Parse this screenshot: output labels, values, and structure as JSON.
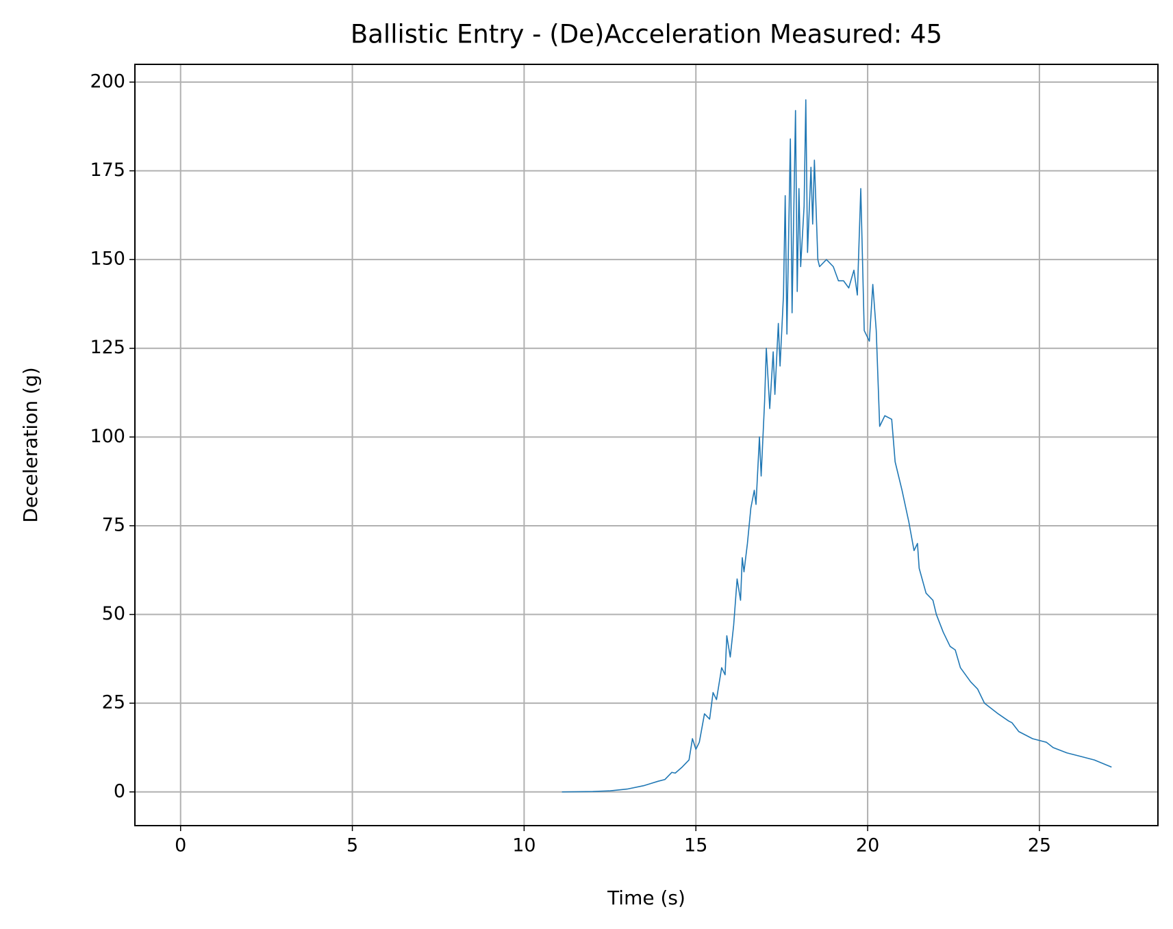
{
  "chart_data": {
    "type": "line",
    "title": "Ballistic Entry - (De)Acceleration Measured: 45",
    "x_label": "Time (s)",
    "y_label": "Deceleration (g)",
    "xlim": [
      -1.33,
      28.45
    ],
    "ylim": [
      -9.5,
      205
    ],
    "xticks": [
      0,
      5,
      10,
      15,
      20,
      25
    ],
    "yticks": [
      0,
      25,
      50,
      75,
      100,
      125,
      150,
      175,
      200
    ],
    "grid": true,
    "series": [
      {
        "color": "#1f77b4",
        "x": [
          11.1,
          12,
          12.5,
          13,
          13.5,
          13.9,
          14.1,
          14.3,
          14.4,
          14.6,
          14.8,
          14.9,
          15.0,
          15.1,
          15.25,
          15.4,
          15.5,
          15.6,
          15.75,
          15.85,
          15.9,
          16.0,
          16.1,
          16.2,
          16.3,
          16.35,
          16.4,
          16.5,
          16.6,
          16.7,
          16.75,
          16.85,
          16.9,
          17.0,
          17.05,
          17.15,
          17.25,
          17.3,
          17.4,
          17.45,
          17.55,
          17.6,
          17.65,
          17.75,
          17.8,
          17.9,
          17.95,
          18.0,
          18.05,
          18.15,
          18.2,
          18.25,
          18.35,
          18.4,
          18.45,
          18.55,
          18.6,
          18.8,
          19.0,
          19.15,
          19.3,
          19.45,
          19.6,
          19.7,
          19.8,
          19.9,
          20.0,
          20.05,
          20.15,
          20.25,
          20.35,
          20.5,
          20.7,
          20.8,
          21.0,
          21.2,
          21.35,
          21.45,
          21.5,
          21.7,
          21.9,
          22.0,
          22.2,
          22.4,
          22.55,
          22.7,
          23.0,
          23.2,
          23.4,
          23.8,
          24.1,
          24.2,
          24.4,
          24.8,
          25.2,
          25.4,
          25.8,
          26.2,
          26.6,
          27.1
        ],
        "values": [
          0,
          0.1,
          0.3,
          0.8,
          1.8,
          3,
          3.5,
          5.5,
          5.3,
          7,
          9,
          15,
          12,
          14,
          22,
          20.5,
          28,
          26,
          35,
          33,
          44,
          38,
          47,
          60,
          54,
          66,
          62,
          70,
          80,
          85,
          81,
          100,
          89,
          110,
          125,
          108,
          124,
          112,
          132,
          120,
          140,
          168,
          129,
          184,
          135,
          192,
          141,
          170,
          148,
          165,
          195,
          152,
          176,
          160,
          178,
          150,
          148,
          150,
          148,
          144,
          144,
          142,
          147,
          140,
          170,
          130,
          128,
          127,
          143,
          130,
          103,
          106,
          105,
          93,
          85,
          76,
          68,
          70,
          63,
          56,
          54,
          50,
          45,
          41,
          40,
          35,
          31,
          29,
          25,
          22,
          20,
          19.5,
          17,
          15,
          14,
          12.5,
          11,
          10,
          9,
          7
        ]
      }
    ]
  }
}
